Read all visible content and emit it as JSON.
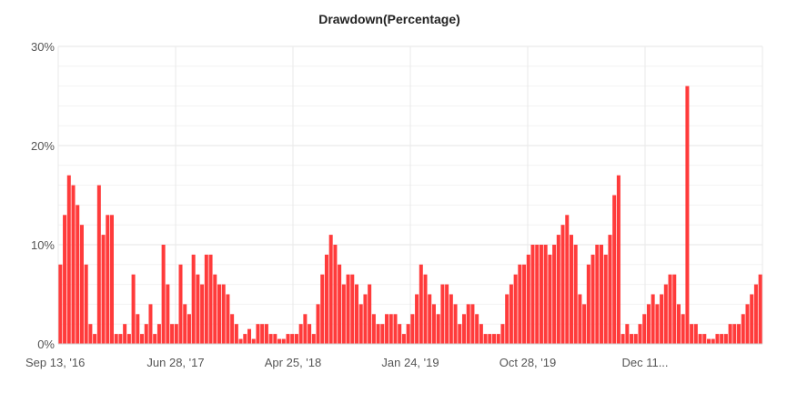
{
  "chart_data": {
    "type": "bar",
    "title": "Drawdown(Percentage)",
    "xlabel": "",
    "ylabel": "",
    "ylim": [
      0,
      30
    ],
    "y_ticks": [
      "0%",
      "10%",
      "20%",
      "30%"
    ],
    "x_tick_labels": [
      "Sep 13, '16",
      "Jun 28, '17",
      "Apr 25, '18",
      "Jan 24, '19",
      "Oct 28, '19",
      "Dec 11..."
    ],
    "grid": true,
    "legend": "none",
    "bar_color": "#ff3b3b",
    "values": [
      8,
      13,
      17,
      16,
      14,
      12,
      8,
      2,
      1,
      16,
      11,
      13,
      13,
      1,
      1,
      2,
      1,
      7,
      3,
      1,
      2,
      4,
      1,
      2,
      10,
      6,
      2,
      2,
      8,
      4,
      3,
      9,
      7,
      6,
      9,
      9,
      7,
      6,
      6,
      5,
      3,
      2,
      0.5,
      1,
      1.5,
      0.5,
      2,
      2,
      2,
      1,
      1,
      0.5,
      0.5,
      1,
      1,
      1,
      2,
      3,
      2,
      1,
      4,
      7,
      9,
      11,
      10,
      8,
      6,
      7,
      7,
      6,
      4,
      5,
      6,
      3,
      2,
      2,
      3,
      3,
      3,
      2,
      1,
      2,
      3,
      5,
      8,
      7,
      5,
      4,
      3,
      6,
      6,
      5,
      4,
      2,
      3,
      4,
      4,
      3,
      2,
      1,
      1,
      1,
      1,
      2,
      5,
      6,
      7,
      8,
      8,
      9,
      10,
      10,
      10,
      10,
      9,
      10,
      11,
      12,
      13,
      11,
      10,
      5,
      4,
      8,
      9,
      10,
      10,
      9,
      11,
      15,
      17,
      1,
      2,
      1,
      1,
      2,
      3,
      4,
      5,
      4,
      5,
      6,
      7,
      7,
      4,
      3,
      26,
      2,
      2,
      1,
      1,
      0.5,
      0.5,
      1,
      1,
      1,
      2,
      2,
      2,
      3,
      4,
      5,
      6,
      7
    ]
  }
}
